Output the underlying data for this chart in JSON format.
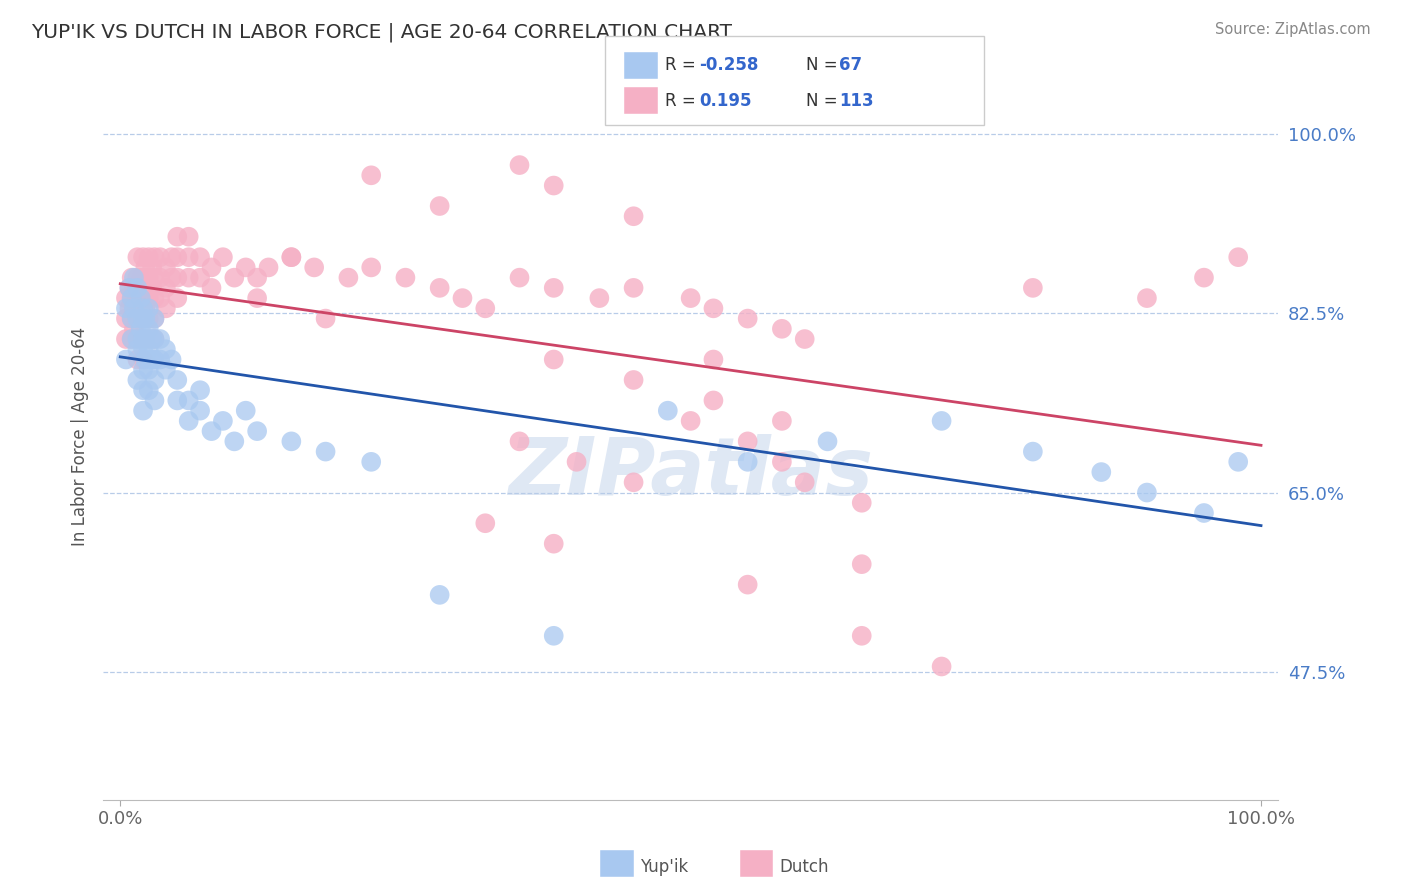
{
  "title": "YUP'IK VS DUTCH IN LABOR FORCE | AGE 20-64 CORRELATION CHART",
  "source": "Source: ZipAtlas.com",
  "ylabel": "In Labor Force | Age 20-64",
  "yticks": [
    0.475,
    0.65,
    0.825,
    1.0
  ],
  "ytick_labels": [
    "47.5%",
    "65.0%",
    "82.5%",
    "100.0%"
  ],
  "xtick_labels": [
    "0.0%",
    "100.0%"
  ],
  "blue_color": "#a8c8f0",
  "pink_color": "#f5b0c5",
  "blue_line_color": "#2255aa",
  "pink_line_color": "#cc4466",
  "background_color": "#ffffff",
  "watermark": "ZIPatlas",
  "yupik_x": [
    0.005,
    0.005,
    0.008,
    0.01,
    0.01,
    0.01,
    0.012,
    0.012,
    0.015,
    0.015,
    0.015,
    0.015,
    0.015,
    0.018,
    0.018,
    0.02,
    0.02,
    0.02,
    0.02,
    0.02,
    0.02,
    0.02,
    0.022,
    0.022,
    0.022,
    0.025,
    0.025,
    0.025,
    0.025,
    0.025,
    0.028,
    0.028,
    0.03,
    0.03,
    0.03,
    0.03,
    0.03,
    0.035,
    0.035,
    0.04,
    0.04,
    0.045,
    0.05,
    0.05,
    0.06,
    0.06,
    0.07,
    0.07,
    0.08,
    0.09,
    0.1,
    0.11,
    0.12,
    0.15,
    0.18,
    0.22,
    0.28,
    0.38,
    0.48,
    0.55,
    0.62,
    0.72,
    0.8,
    0.86,
    0.9,
    0.95,
    0.98
  ],
  "yupik_y": [
    0.83,
    0.78,
    0.85,
    0.84,
    0.82,
    0.8,
    0.86,
    0.83,
    0.85,
    0.82,
    0.8,
    0.79,
    0.76,
    0.84,
    0.81,
    0.83,
    0.82,
    0.8,
    0.79,
    0.77,
    0.75,
    0.73,
    0.82,
    0.8,
    0.78,
    0.83,
    0.81,
    0.79,
    0.77,
    0.75,
    0.8,
    0.78,
    0.82,
    0.8,
    0.78,
    0.76,
    0.74,
    0.8,
    0.78,
    0.79,
    0.77,
    0.78,
    0.76,
    0.74,
    0.74,
    0.72,
    0.75,
    0.73,
    0.71,
    0.72,
    0.7,
    0.73,
    0.71,
    0.7,
    0.69,
    0.68,
    0.55,
    0.51,
    0.73,
    0.68,
    0.7,
    0.72,
    0.69,
    0.67,
    0.65,
    0.63,
    0.68
  ],
  "dutch_x": [
    0.005,
    0.005,
    0.005,
    0.008,
    0.008,
    0.01,
    0.01,
    0.01,
    0.01,
    0.012,
    0.012,
    0.012,
    0.015,
    0.015,
    0.015,
    0.015,
    0.015,
    0.015,
    0.018,
    0.018,
    0.02,
    0.02,
    0.02,
    0.02,
    0.02,
    0.02,
    0.022,
    0.022,
    0.022,
    0.025,
    0.025,
    0.025,
    0.025,
    0.025,
    0.028,
    0.028,
    0.03,
    0.03,
    0.03,
    0.03,
    0.03,
    0.035,
    0.035,
    0.035,
    0.04,
    0.04,
    0.04,
    0.045,
    0.045,
    0.05,
    0.05,
    0.05,
    0.05,
    0.06,
    0.06,
    0.06,
    0.07,
    0.07,
    0.08,
    0.08,
    0.09,
    0.1,
    0.11,
    0.12,
    0.13,
    0.15,
    0.17,
    0.2,
    0.22,
    0.25,
    0.28,
    0.3,
    0.32,
    0.35,
    0.38,
    0.42,
    0.45,
    0.5,
    0.52,
    0.55,
    0.58,
    0.6,
    0.38,
    0.45,
    0.52,
    0.35,
    0.28,
    0.22,
    0.18,
    0.15,
    0.12,
    0.35,
    0.4,
    0.45,
    0.5,
    0.55,
    0.58,
    0.6,
    0.65,
    0.32,
    0.38,
    0.45,
    0.52,
    0.58,
    0.65,
    0.72,
    0.8,
    0.9,
    0.95,
    0.98,
    0.38,
    0.55,
    0.65
  ],
  "dutch_y": [
    0.84,
    0.82,
    0.8,
    0.85,
    0.83,
    0.86,
    0.84,
    0.82,
    0.8,
    0.85,
    0.83,
    0.81,
    0.88,
    0.86,
    0.84,
    0.82,
    0.8,
    0.78,
    0.86,
    0.84,
    0.88,
    0.86,
    0.84,
    0.82,
    0.8,
    0.78,
    0.87,
    0.85,
    0.83,
    0.88,
    0.86,
    0.84,
    0.82,
    0.8,
    0.87,
    0.85,
    0.88,
    0.86,
    0.84,
    0.82,
    0.8,
    0.88,
    0.86,
    0.84,
    0.87,
    0.85,
    0.83,
    0.88,
    0.86,
    0.9,
    0.88,
    0.86,
    0.84,
    0.9,
    0.88,
    0.86,
    0.88,
    0.86,
    0.87,
    0.85,
    0.88,
    0.86,
    0.87,
    0.86,
    0.87,
    0.88,
    0.87,
    0.86,
    0.87,
    0.86,
    0.85,
    0.84,
    0.83,
    0.86,
    0.85,
    0.84,
    0.85,
    0.84,
    0.83,
    0.82,
    0.81,
    0.8,
    0.95,
    0.92,
    0.78,
    0.97,
    0.93,
    0.96,
    0.82,
    0.88,
    0.84,
    0.7,
    0.68,
    0.66,
    0.72,
    0.7,
    0.68,
    0.66,
    0.64,
    0.62,
    0.78,
    0.76,
    0.74,
    0.72,
    0.51,
    0.48,
    0.85,
    0.84,
    0.86,
    0.88,
    0.6,
    0.56,
    0.58
  ]
}
